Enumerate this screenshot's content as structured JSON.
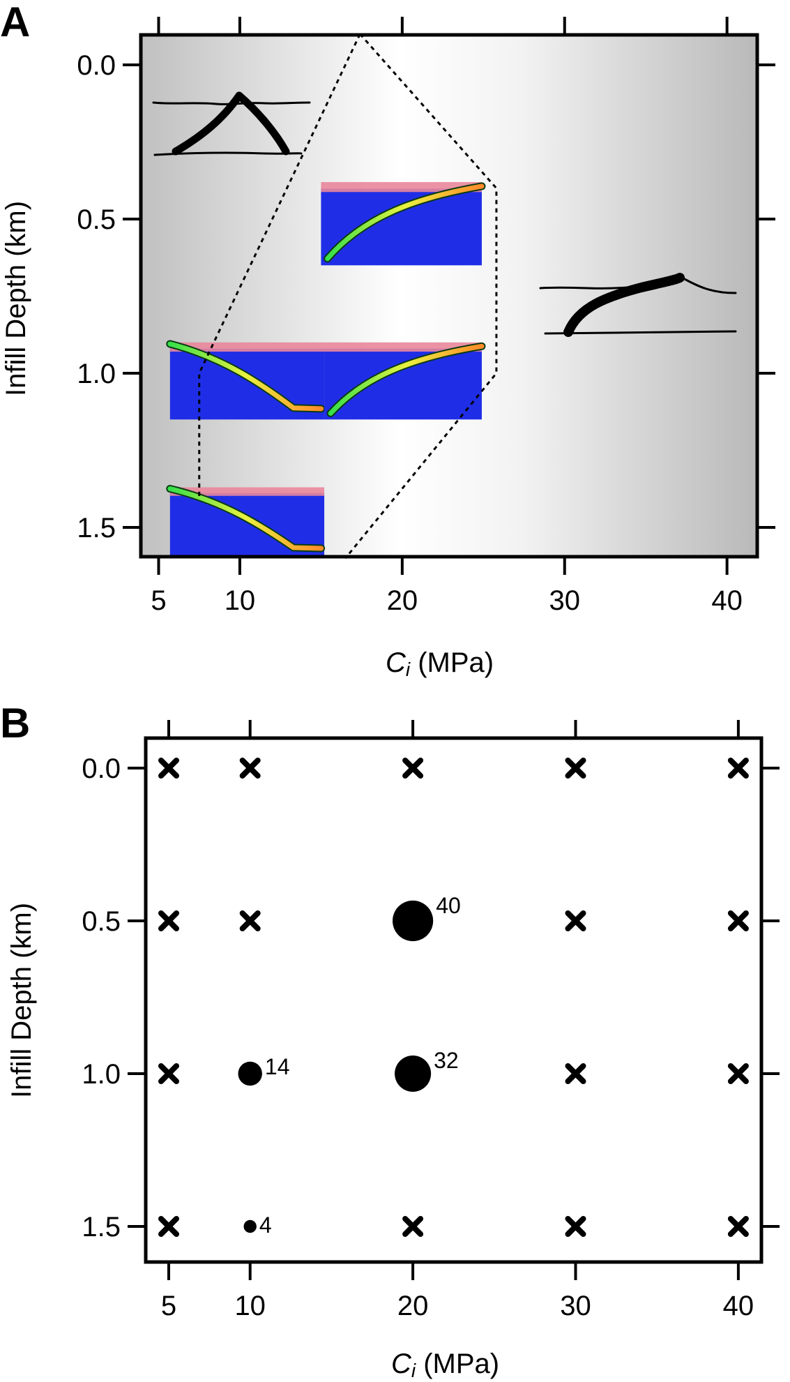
{
  "chart_data": [
    {
      "panel": "A",
      "type": "scatter",
      "xlabel_var": "C",
      "xlabel_sub": "i",
      "xlabel_unit": " (MPa)",
      "ylabel": "Infill Depth (km)",
      "xlim": [
        4,
        41
      ],
      "ylim": [
        1.6,
        -0.1
      ],
      "x_ticks": [
        5,
        10,
        20,
        30,
        40
      ],
      "x_tick_labels": [
        "5",
        "10",
        "20",
        "30",
        "40"
      ],
      "y_ticks": [
        0.0,
        0.5,
        1.0,
        1.5
      ],
      "y_tick_labels": [
        "0.0",
        "0.5",
        "1.0",
        "1.5"
      ],
      "background": "horizontal gray gradient, white region near Ci = 17-24 MPa",
      "regime_boundary": [
        [
          17.4,
          -0.1
        ],
        [
          25.8,
          0.4
        ],
        [
          25.8,
          1.0
        ],
        [
          16.5,
          1.6
        ]
      ],
      "left_boundary": [
        [
          17.4,
          -0.1
        ],
        [
          7.5,
          1.0
        ],
        [
          7.5,
          1.4
        ]
      ],
      "model_snapshots": [
        {
          "name": "snapshot-low-0.5",
          "x": [
            15,
            24.9
          ],
          "y": [
            0.38,
            0.65
          ],
          "dip": "right"
        },
        {
          "name": "snapshot-mid-1.0",
          "x": [
            5.7,
            15.2
          ],
          "y": [
            0.9,
            1.15
          ],
          "dip": "left"
        },
        {
          "name": "snapshot-high-1.0",
          "x": [
            15.2,
            24.9
          ],
          "y": [
            0.9,
            1.15
          ],
          "dip": "right"
        },
        {
          "name": "snapshot-low-1.5",
          "x": [
            5.7,
            15.2
          ],
          "y": [
            1.37,
            1.6
          ],
          "dip": "left"
        }
      ]
    },
    {
      "panel": "B",
      "type": "scatter",
      "xlabel_var": "C",
      "xlabel_sub": "i",
      "xlabel_unit": " (MPa)",
      "ylabel": "Infill Depth (km)",
      "xlim": [
        3.5,
        41
      ],
      "ylim": [
        1.6,
        -0.1
      ],
      "x_ticks": [
        5,
        10,
        20,
        30,
        40
      ],
      "x_tick_labels": [
        "5",
        "10",
        "20",
        "30",
        "40"
      ],
      "y_ticks": [
        0.0,
        0.5,
        1.0,
        1.5
      ],
      "y_tick_labels": [
        "0.0",
        "0.5",
        "1.0",
        "1.5"
      ],
      "no_event_points": [
        [
          5,
          0.0
        ],
        [
          10,
          0.0
        ],
        [
          20,
          0.0
        ],
        [
          30,
          0.0
        ],
        [
          40,
          0.0
        ],
        [
          5,
          0.5
        ],
        [
          10,
          0.5
        ],
        [
          30,
          0.5
        ],
        [
          40,
          0.5
        ],
        [
          5,
          1.0
        ],
        [
          30,
          1.0
        ],
        [
          40,
          1.0
        ],
        [
          5,
          1.5
        ],
        [
          20,
          1.5
        ],
        [
          30,
          1.5
        ],
        [
          40,
          1.5
        ]
      ],
      "event_points": [
        {
          "x": 20,
          "y": 0.5,
          "count": 40
        },
        {
          "x": 10,
          "y": 1.0,
          "count": 14
        },
        {
          "x": 20,
          "y": 1.0,
          "count": 32
        },
        {
          "x": 10,
          "y": 1.5,
          "count": 4
        }
      ]
    }
  ],
  "labels": {
    "panel_a": "A",
    "panel_b": "B"
  }
}
